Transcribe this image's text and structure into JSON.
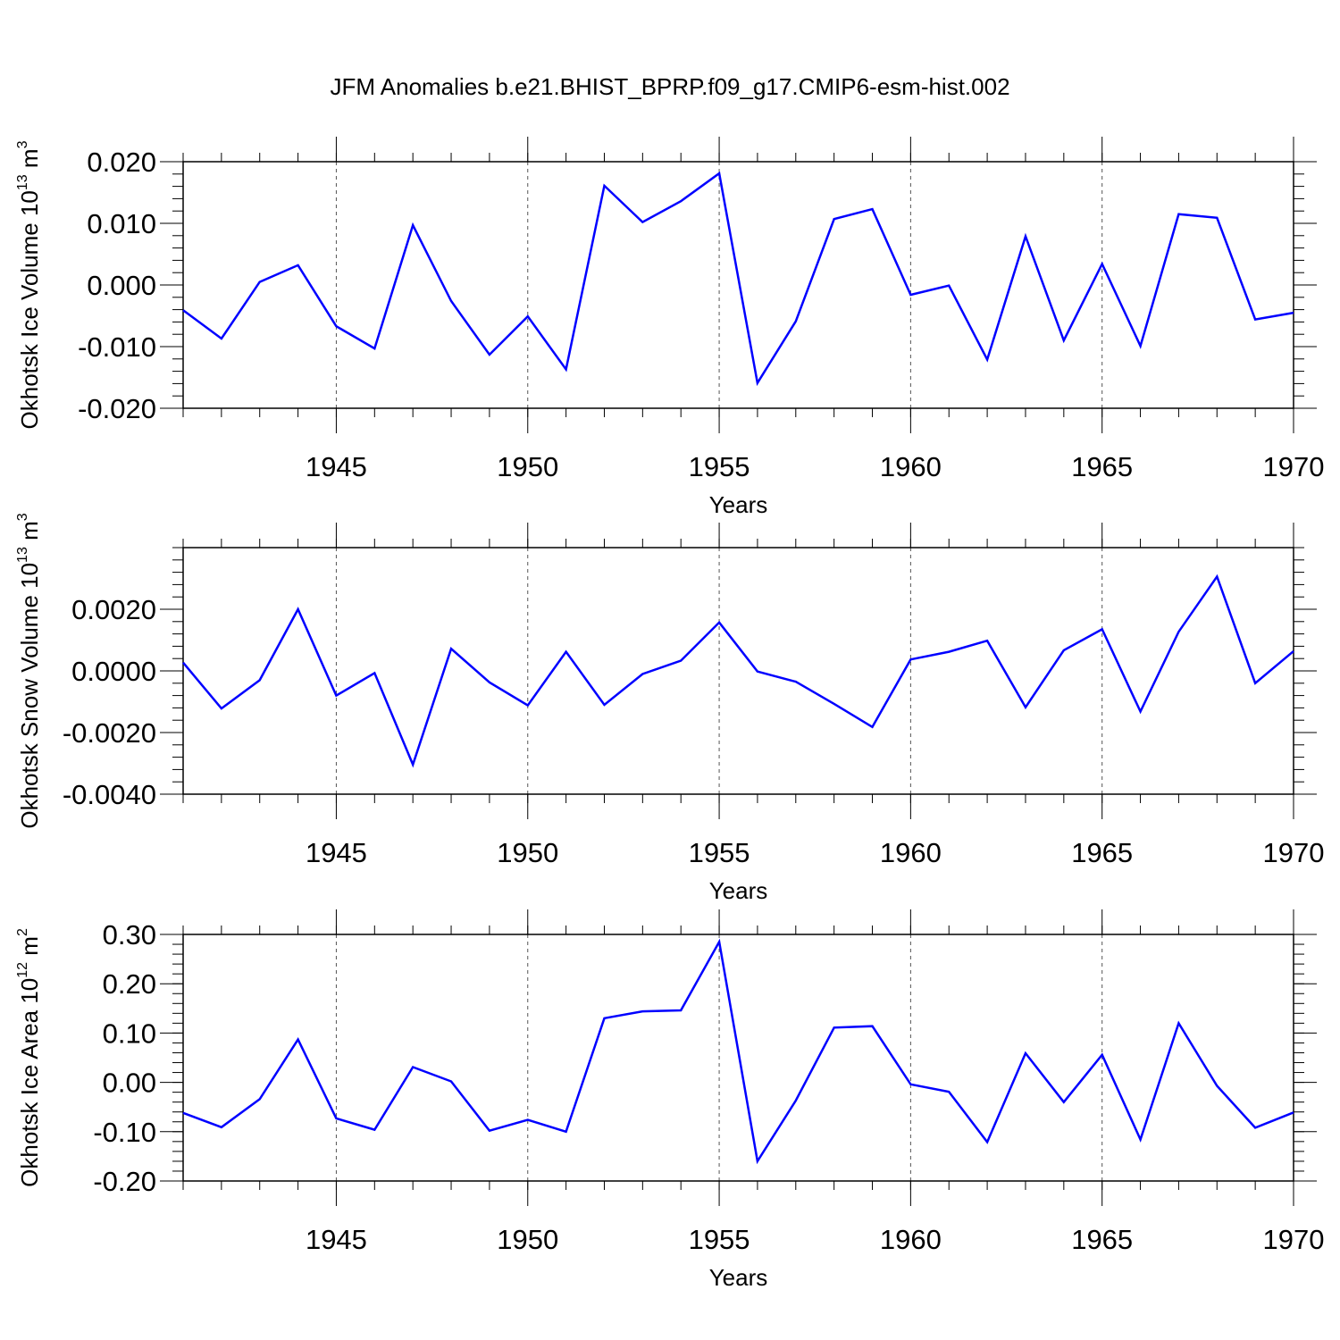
{
  "figure": {
    "title": "JFM Anomalies b.e21.BHIST_BPRP.f09_g17.CMIP6-esm-hist.002"
  },
  "chart_data": [
    {
      "type": "line",
      "ylabel_main": "Okhotsk Ice Volume 10",
      "ylabel_exp": "13",
      "ylabel_unit": " m",
      "ylabel_unit_exp": "3",
      "xlabel": "Years",
      "xlim": [
        1941,
        1970
      ],
      "ylim": [
        -0.02,
        0.02
      ],
      "yticks": [
        -0.02,
        -0.01,
        0.0,
        0.01,
        0.02
      ],
      "ytick_labels": [
        "-0.020",
        "-0.010",
        "0.000",
        "0.010",
        "0.020"
      ],
      "xticks": [
        1945,
        1950,
        1955,
        1960,
        1965,
        1970
      ],
      "xtick_labels": [
        "1945",
        "1950",
        "1955",
        "1960",
        "1965",
        "1970"
      ],
      "grid": "vertical dashed at major x ticks",
      "line_color": "#0000ff",
      "x": [
        1941,
        1942,
        1943,
        1944,
        1945,
        1946,
        1947,
        1948,
        1949,
        1950,
        1951,
        1952,
        1953,
        1954,
        1955,
        1956,
        1957,
        1958,
        1959,
        1960,
        1961,
        1962,
        1963,
        1964,
        1965,
        1966,
        1967,
        1968,
        1969,
        1970
      ],
      "y": [
        -0.0041,
        -0.0087,
        0.0005,
        0.0032,
        -0.0067,
        -0.0103,
        0.0097,
        -0.0026,
        -0.0113,
        -0.0051,
        -0.0137,
        0.0161,
        0.0102,
        0.0136,
        0.0181,
        -0.0159,
        -0.0059,
        0.0107,
        0.0123,
        -0.0016,
        -0.0001,
        -0.0121,
        0.0079,
        -0.009,
        0.0034,
        -0.0099,
        0.0115,
        0.0109,
        -0.0056,
        -0.0045
      ]
    },
    {
      "type": "line",
      "ylabel_main": "Okhotsk Snow Volume 10",
      "ylabel_exp": "13",
      "ylabel_unit": " m",
      "ylabel_unit_exp": "3",
      "xlabel": "Years",
      "xlim": [
        1941,
        1970
      ],
      "ylim": [
        -0.004,
        0.004
      ],
      "yticks": [
        -0.004,
        -0.002,
        0.0,
        0.002
      ],
      "ytick_labels": [
        "-0.0040",
        "-0.0020",
        "0.0000",
        "0.0020"
      ],
      "xticks": [
        1945,
        1950,
        1955,
        1960,
        1965,
        1970
      ],
      "xtick_labels": [
        "1945",
        "1950",
        "1955",
        "1960",
        "1965",
        "1970"
      ],
      "grid": "vertical dashed at major x ticks",
      "line_color": "#0000ff",
      "x": [
        1941,
        1942,
        1943,
        1944,
        1945,
        1946,
        1947,
        1948,
        1949,
        1950,
        1951,
        1952,
        1953,
        1954,
        1955,
        1956,
        1957,
        1958,
        1959,
        1960,
        1961,
        1962,
        1963,
        1964,
        1965,
        1966,
        1967,
        1968,
        1969,
        1970
      ],
      "y": [
        0.00027,
        -0.00122,
        -0.0003,
        0.002,
        -0.0008,
        -7e-05,
        -0.00304,
        0.00072,
        -0.00037,
        -0.00112,
        0.00062,
        -0.0011,
        -0.0001,
        0.00033,
        0.00157,
        -2e-05,
        -0.00035,
        -0.00107,
        -0.00182,
        0.00037,
        0.00062,
        0.00098,
        -0.00118,
        0.00067,
        0.00135,
        -0.00132,
        0.00127,
        0.00306,
        -0.0004,
        0.00064
      ]
    },
    {
      "type": "line",
      "ylabel_main": "Okhotsk Ice Area 10",
      "ylabel_exp": "12",
      "ylabel_unit": " m",
      "ylabel_unit_exp": "2",
      "xlabel": "Years",
      "xlim": [
        1941,
        1970
      ],
      "ylim": [
        -0.2,
        0.3
      ],
      "yticks": [
        -0.2,
        -0.1,
        0.0,
        0.1,
        0.2,
        0.3
      ],
      "ytick_labels": [
        "-0.20",
        "-0.10",
        "0.00",
        "0.10",
        "0.20",
        "0.30"
      ],
      "xticks": [
        1945,
        1950,
        1955,
        1960,
        1965,
        1970
      ],
      "xtick_labels": [
        "1945",
        "1950",
        "1955",
        "1960",
        "1965",
        "1970"
      ],
      "grid": "vertical dashed at major x ticks",
      "line_color": "#0000ff",
      "x": [
        1941,
        1942,
        1943,
        1944,
        1945,
        1946,
        1947,
        1948,
        1949,
        1950,
        1951,
        1952,
        1953,
        1954,
        1955,
        1956,
        1957,
        1958,
        1959,
        1960,
        1961,
        1962,
        1963,
        1964,
        1965,
        1966,
        1967,
        1968,
        1969,
        1970
      ],
      "y": [
        -0.062,
        -0.091,
        -0.034,
        0.087,
        -0.073,
        -0.096,
        0.031,
        0.002,
        -0.098,
        -0.076,
        -0.1,
        0.13,
        0.144,
        0.146,
        0.285,
        -0.16,
        -0.037,
        0.111,
        0.114,
        -0.004,
        -0.019,
        -0.121,
        0.059,
        -0.04,
        0.056,
        -0.116,
        0.12,
        -0.007,
        -0.092,
        -0.061
      ]
    }
  ]
}
